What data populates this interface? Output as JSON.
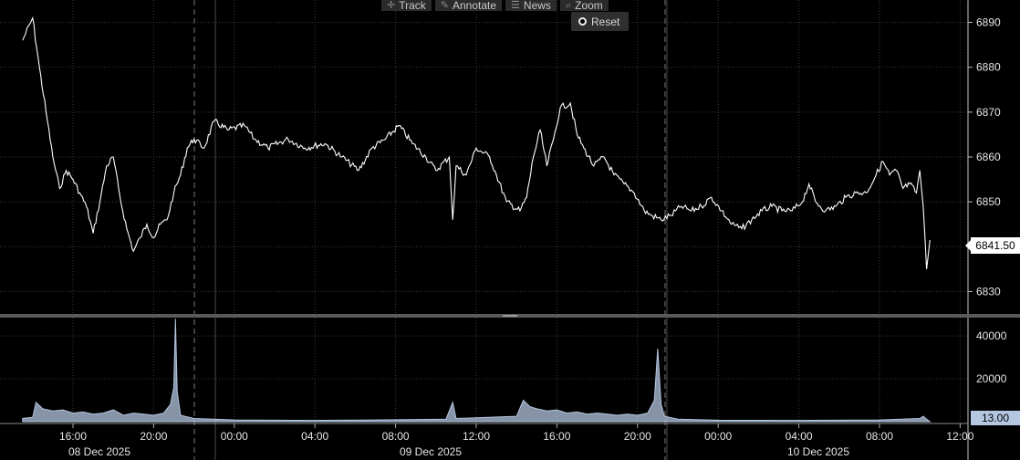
{
  "toolbar": {
    "track": {
      "label": "Track",
      "icon": "crosshair-icon"
    },
    "annotate": {
      "label": "Annotate",
      "icon": "pencil-icon"
    },
    "news": {
      "label": "News",
      "icon": "news-icon"
    },
    "zoom": {
      "label": "Zoom",
      "icon": "magnifier-icon"
    },
    "reset": {
      "label": "Reset",
      "icon": "reset-icon"
    }
  },
  "last_price_label": "6841.50",
  "last_volume_label": "13.00",
  "colors": {
    "background": "#000000",
    "price_line": "#ffffff",
    "volume_fill": "#b4c6e0",
    "grid": "#3a3a3a"
  },
  "chart_data": [
    {
      "type": "line",
      "series": [
        {
          "values": [
            [
              "08 Dec 13:30",
              6886
            ],
            [
              "08 Dec 14:00",
              6891
            ],
            [
              "08 Dec 14:20",
              6880
            ],
            [
              "08 Dec 14:40",
              6870
            ],
            [
              "08 Dec 15:00",
              6860
            ],
            [
              "08 Dec 15:20",
              6853
            ],
            [
              "08 Dec 15:40",
              6857
            ],
            [
              "08 Dec 16:00",
              6855
            ],
            [
              "08 Dec 16:20",
              6852
            ],
            [
              "08 Dec 16:40",
              6849
            ],
            [
              "08 Dec 17:00",
              6843
            ],
            [
              "08 Dec 17:20",
              6850
            ],
            [
              "08 Dec 17:40",
              6858
            ],
            [
              "08 Dec 18:00",
              6860
            ],
            [
              "08 Dec 18:20",
              6851
            ],
            [
              "08 Dec 18:40",
              6844
            ],
            [
              "08 Dec 19:00",
              6839
            ],
            [
              "08 Dec 19:20",
              6842
            ],
            [
              "08 Dec 19:40",
              6845
            ],
            [
              "08 Dec 20:00",
              6842
            ],
            [
              "08 Dec 20:20",
              6845
            ],
            [
              "08 Dec 20:40",
              6846
            ],
            [
              "08 Dec 21:00",
              6852
            ],
            [
              "08 Dec 21:20",
              6856
            ],
            [
              "08 Dec 21:40",
              6862
            ],
            [
              "08 Dec 22:00",
              6864
            ],
            [
              "08 Dec 22:30",
              6862
            ],
            [
              "08 Dec 23:00",
              6868
            ],
            [
              "08 Dec 23:40",
              6866
            ],
            [
              "09 Dec 00:30",
              6867
            ],
            [
              "09 Dec 01:00",
              6864
            ],
            [
              "09 Dec 01:40",
              6862
            ],
            [
              "09 Dec 02:40",
              6864
            ],
            [
              "09 Dec 03:30",
              6862
            ],
            [
              "09 Dec 04:30",
              6863
            ],
            [
              "09 Dec 05:20",
              6860
            ],
            [
              "09 Dec 06:10",
              6857
            ],
            [
              "09 Dec 06:50",
              6862
            ],
            [
              "09 Dec 07:30",
              6864
            ],
            [
              "09 Dec 08:10",
              6867
            ],
            [
              "09 Dec 08:50",
              6863
            ],
            [
              "09 Dec 09:30",
              6860
            ],
            [
              "09 Dec 10:00",
              6857
            ],
            [
              "09 Dec 10:40",
              6860
            ],
            [
              "09 Dec 10:50",
              6846
            ],
            [
              "09 Dec 11:00",
              6858
            ],
            [
              "09 Dec 11:30",
              6856
            ],
            [
              "09 Dec 12:00",
              6862
            ],
            [
              "09 Dec 12:40",
              6860
            ],
            [
              "09 Dec 13:00",
              6856
            ],
            [
              "09 Dec 13:30",
              6850
            ],
            [
              "09 Dec 14:10",
              6848
            ],
            [
              "09 Dec 14:30",
              6851
            ],
            [
              "09 Dec 14:50",
              6860
            ],
            [
              "09 Dec 15:10",
              6866
            ],
            [
              "09 Dec 15:30",
              6858
            ],
            [
              "09 Dec 15:50",
              6864
            ],
            [
              "09 Dec 16:10",
              6871
            ],
            [
              "09 Dec 16:40",
              6872
            ],
            [
              "09 Dec 17:00",
              6865
            ],
            [
              "09 Dec 17:20",
              6862
            ],
            [
              "09 Dec 17:50",
              6858
            ],
            [
              "09 Dec 18:20",
              6860
            ],
            [
              "09 Dec 18:50",
              6856
            ],
            [
              "09 Dec 19:20",
              6854
            ],
            [
              "09 Dec 19:50",
              6852
            ],
            [
              "09 Dec 20:20",
              6848
            ],
            [
              "09 Dec 20:40",
              6847
            ],
            [
              "09 Dec 21:10",
              6846
            ],
            [
              "09 Dec 21:40",
              6847
            ],
            [
              "09 Dec 22:10",
              6849
            ],
            [
              "09 Dec 22:40",
              6848
            ],
            [
              "09 Dec 23:10",
              6849
            ],
            [
              "09 Dec 23:40",
              6851
            ],
            [
              "10 Dec 00:10",
              6848
            ],
            [
              "10 Dec 00:40",
              6845
            ],
            [
              "10 Dec 01:10",
              6844
            ],
            [
              "10 Dec 01:40",
              6846
            ],
            [
              "10 Dec 02:10",
              6848
            ],
            [
              "10 Dec 02:40",
              6849
            ],
            [
              "10 Dec 03:10",
              6848
            ],
            [
              "10 Dec 03:40",
              6848
            ],
            [
              "10 Dec 04:10",
              6850
            ],
            [
              "10 Dec 04:30",
              6854
            ],
            [
              "10 Dec 04:50",
              6850
            ],
            [
              "10 Dec 05:20",
              6848
            ],
            [
              "10 Dec 05:50",
              6849
            ],
            [
              "10 Dec 06:20",
              6851
            ],
            [
              "10 Dec 06:50",
              6852
            ],
            [
              "10 Dec 07:20",
              6852
            ],
            [
              "10 Dec 07:50",
              6856
            ],
            [
              "10 Dec 08:10",
              6859
            ],
            [
              "10 Dec 08:30",
              6856
            ],
            [
              "10 Dec 08:50",
              6857
            ],
            [
              "10 Dec 09:10",
              6853
            ],
            [
              "10 Dec 09:30",
              6854
            ],
            [
              "10 Dec 09:50",
              6852
            ],
            [
              "10 Dec 10:00",
              6857
            ],
            [
              "10 Dec 10:10",
              6849
            ],
            [
              "10 Dec 10:20",
              6835
            ],
            [
              "10 Dec 10:30",
              6841.5
            ]
          ]
        }
      ],
      "ylim": [
        6825,
        6895
      ],
      "yticks": [
        6830,
        6840,
        6850,
        6860,
        6870,
        6880,
        6890
      ],
      "ytick_labels": [
        "6830",
        "6840",
        "6850",
        "6860",
        "6870",
        "6880",
        "6890"
      ],
      "grid": true,
      "y_axis": "right"
    },
    {
      "type": "area",
      "series": [
        {
          "values": [
            [
              "08 Dec 13:30",
              1500
            ],
            [
              "08 Dec 14:00",
              2000
            ],
            [
              "08 Dec 14:10",
              9000
            ],
            [
              "08 Dec 14:30",
              6000
            ],
            [
              "08 Dec 15:00",
              5000
            ],
            [
              "08 Dec 15:30",
              5500
            ],
            [
              "08 Dec 16:00",
              4000
            ],
            [
              "08 Dec 16:30",
              4500
            ],
            [
              "08 Dec 17:00",
              3500
            ],
            [
              "08 Dec 17:30",
              4000
            ],
            [
              "08 Dec 18:00",
              5500
            ],
            [
              "08 Dec 18:30",
              3000
            ],
            [
              "08 Dec 19:00",
              4000
            ],
            [
              "08 Dec 19:30",
              3500
            ],
            [
              "08 Dec 20:00",
              3000
            ],
            [
              "08 Dec 20:30",
              4000
            ],
            [
              "08 Dec 20:50",
              8000
            ],
            [
              "08 Dec 21:00",
              16000
            ],
            [
              "08 Dec 21:05",
              48000
            ],
            [
              "08 Dec 21:10",
              14000
            ],
            [
              "08 Dec 21:20",
              3000
            ],
            [
              "08 Dec 22:00",
              1500
            ],
            [
              "09 Dec 00:00",
              800
            ],
            [
              "09 Dec 04:00",
              600
            ],
            [
              "09 Dec 08:00",
              900
            ],
            [
              "09 Dec 10:30",
              1200
            ],
            [
              "09 Dec 10:50",
              9000
            ],
            [
              "09 Dec 11:00",
              1500
            ],
            [
              "09 Dec 14:00",
              2500
            ],
            [
              "09 Dec 14:20",
              10000
            ],
            [
              "09 Dec 14:40",
              7000
            ],
            [
              "09 Dec 15:00",
              6000
            ],
            [
              "09 Dec 15:30",
              5000
            ],
            [
              "09 Dec 16:00",
              5500
            ],
            [
              "09 Dec 16:30",
              4000
            ],
            [
              "09 Dec 17:00",
              4500
            ],
            [
              "09 Dec 17:30",
              3500
            ],
            [
              "09 Dec 18:00",
              4000
            ],
            [
              "09 Dec 18:30",
              3500
            ],
            [
              "09 Dec 19:00",
              3000
            ],
            [
              "09 Dec 19:30",
              3500
            ],
            [
              "09 Dec 20:00",
              3000
            ],
            [
              "09 Dec 20:30",
              4000
            ],
            [
              "09 Dec 20:50",
              10000
            ],
            [
              "09 Dec 21:00",
              34000
            ],
            [
              "09 Dec 21:10",
              8000
            ],
            [
              "09 Dec 21:20",
              2500
            ],
            [
              "09 Dec 22:00",
              1200
            ],
            [
              "10 Dec 00:00",
              700
            ],
            [
              "10 Dec 04:00",
              600
            ],
            [
              "10 Dec 08:00",
              800
            ],
            [
              "10 Dec 10:00",
              1500
            ],
            [
              "10 Dec 10:10",
              2500
            ],
            [
              "10 Dec 10:20",
              1200
            ],
            [
              "10 Dec 10:30",
              13
            ]
          ]
        }
      ],
      "ylim": [
        0,
        46000
      ],
      "yticks": [
        20000,
        40000
      ],
      "ytick_labels": [
        "20000",
        "40000"
      ],
      "grid": true,
      "y_axis": "right"
    }
  ],
  "x_axis": {
    "time_labels": [
      "16:00",
      "20:00",
      "00:00",
      "04:00",
      "08:00",
      "12:00",
      "16:00",
      "20:00",
      "00:00",
      "04:00",
      "08:00",
      "12:00"
    ],
    "date_labels": [
      "08 Dec 2025",
      "09 Dec 2025",
      "10 Dec 2025"
    ]
  }
}
